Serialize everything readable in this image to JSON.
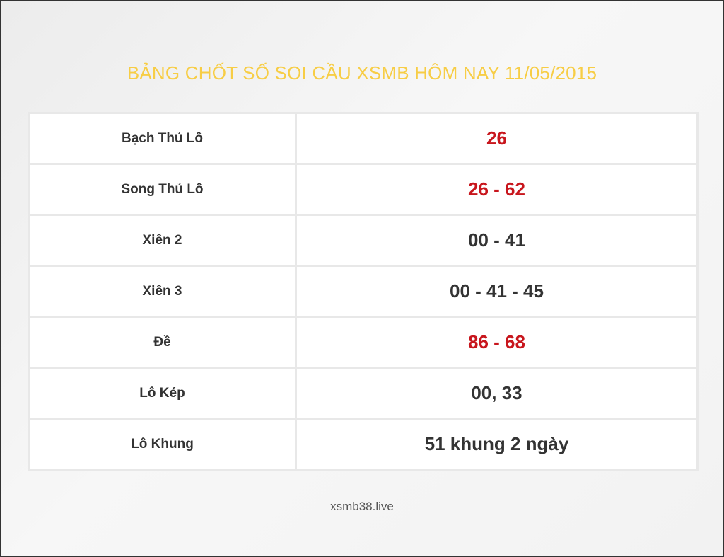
{
  "title": "BẢNG CHỐT SỐ SOI CẦU XSMB HÔM NAY 11/05/2015",
  "colors": {
    "title": "#f7cd45",
    "highlight": "#c8161d",
    "text": "#333333"
  },
  "rows": [
    {
      "label": "Bạch Thủ Lô",
      "value": "26",
      "highlight": true
    },
    {
      "label": "Song Thủ Lô",
      "value": "26 - 62",
      "highlight": true
    },
    {
      "label": "Xiên 2",
      "value": "00 - 41",
      "highlight": false
    },
    {
      "label": "Xiên 3",
      "value": "00 - 41 - 45",
      "highlight": false
    },
    {
      "label": "Đề",
      "value": "86 - 68",
      "highlight": true
    },
    {
      "label": "Lô Kép",
      "value": "00, 33",
      "highlight": false
    },
    {
      "label": "Lô Khung",
      "value": "51 khung 2 ngày",
      "highlight": false
    }
  ],
  "footer": "xsmb38.live"
}
